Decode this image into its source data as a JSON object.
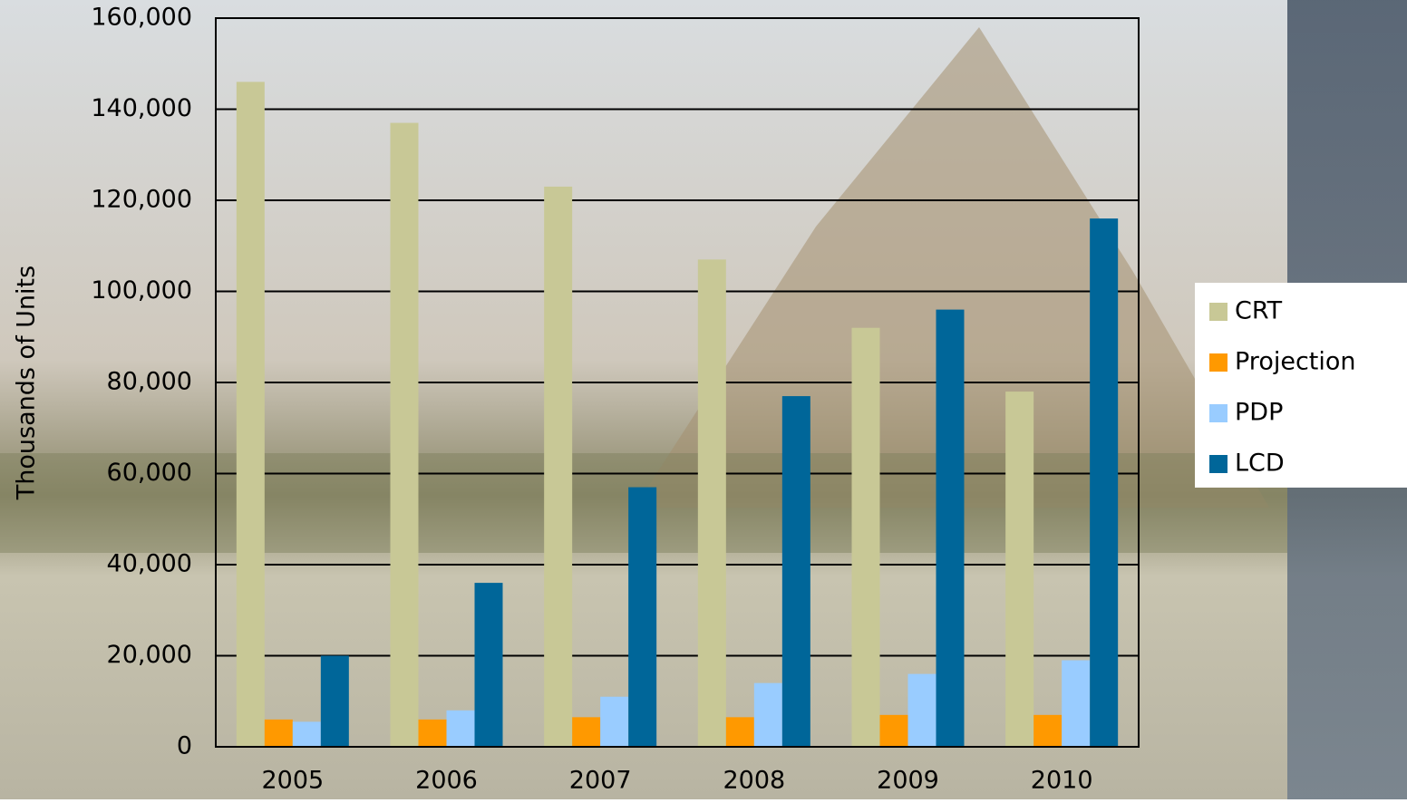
{
  "chart_data": {
    "type": "bar",
    "categories": [
      "2005",
      "2006",
      "2007",
      "2008",
      "2009",
      "2010"
    ],
    "series": [
      {
        "name": "CRT",
        "color": "#c8c896",
        "values": [
          146000,
          137000,
          123000,
          107000,
          92000,
          78000
        ]
      },
      {
        "name": "Projection",
        "color": "#ff9900",
        "values": [
          6000,
          6000,
          6500,
          6500,
          7000,
          7000
        ]
      },
      {
        "name": "PDP",
        "color": "#99ccff",
        "values": [
          5500,
          8000,
          11000,
          14000,
          16000,
          19000
        ]
      },
      {
        "name": "LCD",
        "color": "#006699",
        "values": [
          20000,
          36000,
          57000,
          77000,
          96000,
          116000
        ]
      }
    ],
    "y_label": "Thousands of Units",
    "ylim": [
      0,
      160000
    ],
    "yticks": [
      0,
      {
        "value": 20000,
        "label": "20,000"
      },
      {
        "value": 40000,
        "label": "40,000"
      },
      {
        "value": 60000,
        "label": "60,000"
      },
      {
        "value": 80000,
        "label": "80,000"
      },
      {
        "value": 100000,
        "label": "100,000"
      },
      {
        "value": 120000,
        "label": "120,000"
      },
      {
        "value": 140000,
        "label": "140,000"
      },
      {
        "value": 160000,
        "label": "160,000"
      }
    ],
    "grid": true,
    "legend": "right"
  }
}
